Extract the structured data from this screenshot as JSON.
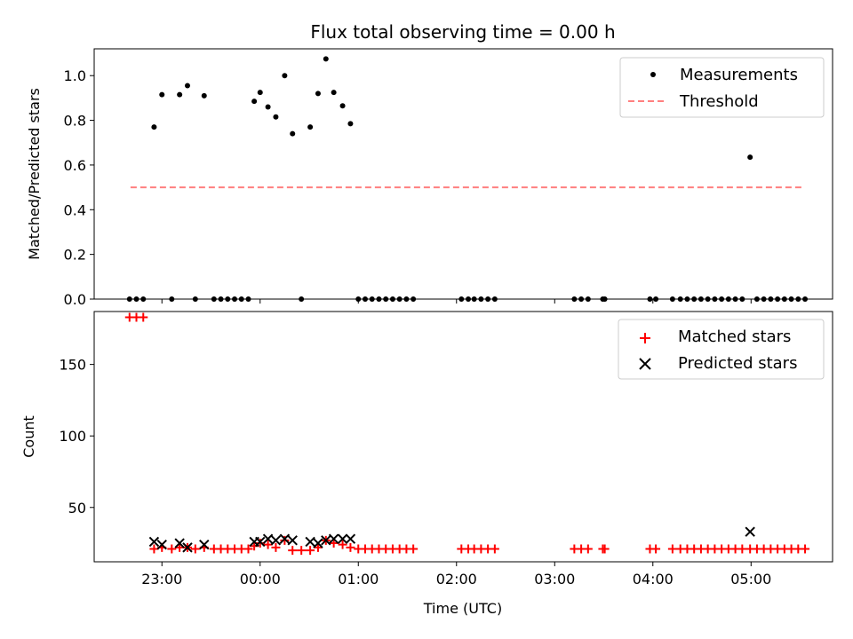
{
  "chart_data": {
    "title": "Flux total observing time = 0.00 h",
    "xlabel": "Time (UTC)",
    "x_unit": "hours since 23:00 UTC",
    "xlim": [
      -0.69,
      6.83
    ],
    "x_ticks": [
      {
        "x": 0,
        "label": "23:00"
      },
      {
        "x": 1,
        "label": "00:00"
      },
      {
        "x": 2,
        "label": "01:00"
      },
      {
        "x": 3,
        "label": "02:00"
      },
      {
        "x": 4,
        "label": "03:00"
      },
      {
        "x": 5,
        "label": "04:00"
      },
      {
        "x": 6,
        "label": "05:00"
      }
    ],
    "panels": [
      {
        "type": "scatter",
        "ylabel": "Matched/Predicted stars",
        "ylim": [
          0,
          1.12
        ],
        "yticks": [
          "0.0",
          "0.2",
          "0.4",
          "0.6",
          "0.8",
          "1.0"
        ],
        "legend": [
          {
            "label": "Measurements"
          },
          {
            "label": "Threshold"
          }
        ],
        "threshold": {
          "x": [
            -0.32,
            6.53
          ],
          "y": 0.5,
          "color": "#ff7f7f"
        },
        "measurements": [
          [
            -0.33,
            0
          ],
          [
            -0.26,
            0
          ],
          [
            -0.19,
            0
          ],
          [
            -0.08,
            0.77
          ],
          [
            0.0,
            0.915
          ],
          [
            0.1,
            0
          ],
          [
            0.18,
            0.915
          ],
          [
            0.26,
            0.955
          ],
          [
            0.34,
            0
          ],
          [
            0.43,
            0.91
          ],
          [
            0.53,
            0
          ],
          [
            0.6,
            0
          ],
          [
            0.67,
            0
          ],
          [
            0.74,
            0
          ],
          [
            0.81,
            0
          ],
          [
            0.88,
            0
          ],
          [
            0.94,
            0.885
          ],
          [
            1.0,
            0.925
          ],
          [
            1.08,
            0.86
          ],
          [
            1.16,
            0.815
          ],
          [
            1.25,
            1.0
          ],
          [
            1.33,
            0.74
          ],
          [
            1.42,
            0
          ],
          [
            1.51,
            0.77
          ],
          [
            1.59,
            0.92
          ],
          [
            1.67,
            1.075
          ],
          [
            1.75,
            0.925
          ],
          [
            1.84,
            0.865
          ],
          [
            1.92,
            0.785
          ],
          [
            2.0,
            0
          ],
          [
            2.07,
            0
          ],
          [
            2.14,
            0
          ],
          [
            2.21,
            0
          ],
          [
            2.28,
            0
          ],
          [
            2.35,
            0
          ],
          [
            2.42,
            0
          ],
          [
            2.49,
            0
          ],
          [
            2.56,
            0
          ],
          [
            3.05,
            0
          ],
          [
            3.12,
            0
          ],
          [
            3.18,
            0
          ],
          [
            3.25,
            0
          ],
          [
            3.32,
            0
          ],
          [
            3.39,
            0
          ],
          [
            4.2,
            0
          ],
          [
            4.27,
            0
          ],
          [
            4.34,
            0
          ],
          [
            4.49,
            0
          ],
          [
            4.51,
            0
          ],
          [
            4.97,
            0
          ],
          [
            5.03,
            0
          ],
          [
            5.2,
            0
          ],
          [
            5.28,
            0
          ],
          [
            5.35,
            0
          ],
          [
            5.42,
            0
          ],
          [
            5.49,
            0
          ],
          [
            5.56,
            0
          ],
          [
            5.63,
            0
          ],
          [
            5.7,
            0
          ],
          [
            5.77,
            0
          ],
          [
            5.84,
            0
          ],
          [
            5.91,
            0
          ],
          [
            5.99,
            0.635
          ],
          [
            6.06,
            0
          ],
          [
            6.13,
            0
          ],
          [
            6.2,
            0
          ],
          [
            6.27,
            0
          ],
          [
            6.34,
            0
          ],
          [
            6.41,
            0
          ],
          [
            6.48,
            0
          ],
          [
            6.55,
            0
          ]
        ]
      },
      {
        "type": "scatter",
        "ylabel": "Count",
        "ylim": [
          12,
          187
        ],
        "yticks": [
          "50",
          "100",
          "150"
        ],
        "legend": [
          {
            "label": "Matched stars",
            "color": "#ff0000"
          },
          {
            "label": "Predicted stars",
            "color": "#000000"
          }
        ],
        "matched": [
          [
            -0.33,
            183
          ],
          [
            -0.26,
            183
          ],
          [
            -0.19,
            183
          ],
          [
            -0.08,
            21
          ],
          [
            0.0,
            22
          ],
          [
            0.1,
            21
          ],
          [
            0.18,
            22
          ],
          [
            0.26,
            22
          ],
          [
            0.34,
            21
          ],
          [
            0.43,
            22
          ],
          [
            0.53,
            21
          ],
          [
            0.6,
            21
          ],
          [
            0.67,
            21
          ],
          [
            0.74,
            21
          ],
          [
            0.81,
            21
          ],
          [
            0.88,
            21
          ],
          [
            0.94,
            23
          ],
          [
            1.0,
            25
          ],
          [
            1.08,
            24
          ],
          [
            1.16,
            22
          ],
          [
            1.25,
            27
          ],
          [
            1.33,
            20
          ],
          [
            1.42,
            20
          ],
          [
            1.51,
            20
          ],
          [
            1.59,
            22
          ],
          [
            1.67,
            27
          ],
          [
            1.75,
            25
          ],
          [
            1.84,
            24
          ],
          [
            1.92,
            22
          ],
          [
            2.0,
            21
          ],
          [
            2.07,
            21
          ],
          [
            2.14,
            21
          ],
          [
            2.21,
            21
          ],
          [
            2.28,
            21
          ],
          [
            2.35,
            21
          ],
          [
            2.42,
            21
          ],
          [
            2.49,
            21
          ],
          [
            2.56,
            21
          ],
          [
            3.05,
            21
          ],
          [
            3.12,
            21
          ],
          [
            3.18,
            21
          ],
          [
            3.25,
            21
          ],
          [
            3.32,
            21
          ],
          [
            3.39,
            21
          ],
          [
            4.2,
            21
          ],
          [
            4.27,
            21
          ],
          [
            4.34,
            21
          ],
          [
            4.49,
            21
          ],
          [
            4.51,
            21
          ],
          [
            4.97,
            21
          ],
          [
            5.03,
            21
          ],
          [
            5.2,
            21
          ],
          [
            5.28,
            21
          ],
          [
            5.35,
            21
          ],
          [
            5.42,
            21
          ],
          [
            5.49,
            21
          ],
          [
            5.56,
            21
          ],
          [
            5.63,
            21
          ],
          [
            5.7,
            21
          ],
          [
            5.77,
            21
          ],
          [
            5.84,
            21
          ],
          [
            5.91,
            21
          ],
          [
            5.99,
            21
          ],
          [
            6.06,
            21
          ],
          [
            6.13,
            21
          ],
          [
            6.2,
            21
          ],
          [
            6.27,
            21
          ],
          [
            6.34,
            21
          ],
          [
            6.41,
            21
          ],
          [
            6.48,
            21
          ],
          [
            6.55,
            21
          ]
        ],
        "predicted": [
          [
            -0.08,
            26
          ],
          [
            0.0,
            24
          ],
          [
            0.18,
            25
          ],
          [
            0.26,
            22
          ],
          [
            0.43,
            24
          ],
          [
            0.94,
            26
          ],
          [
            1.0,
            26
          ],
          [
            1.08,
            28
          ],
          [
            1.16,
            27
          ],
          [
            1.25,
            28
          ],
          [
            1.33,
            27
          ],
          [
            1.51,
            26
          ],
          [
            1.59,
            25
          ],
          [
            1.67,
            27
          ],
          [
            1.75,
            28
          ],
          [
            1.84,
            28
          ],
          [
            1.92,
            28
          ],
          [
            5.99,
            33
          ]
        ]
      }
    ]
  }
}
